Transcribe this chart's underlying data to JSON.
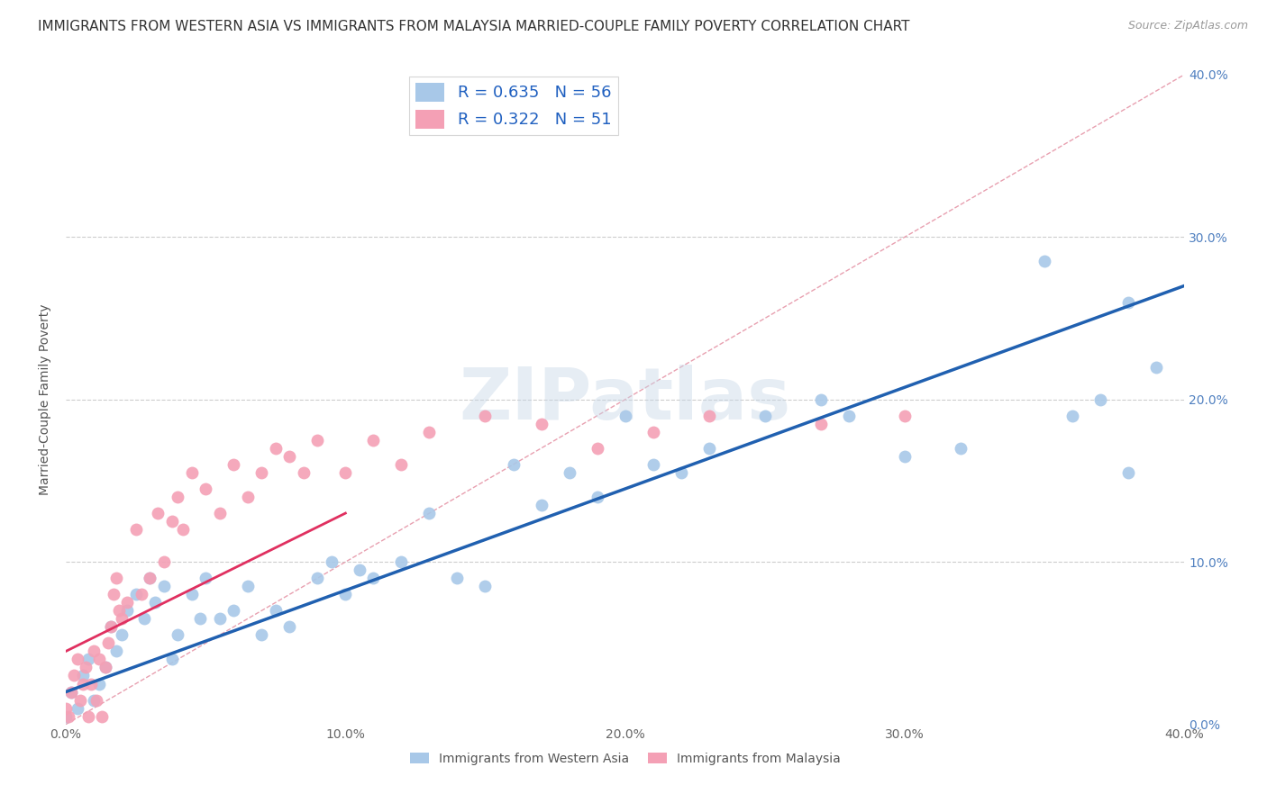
{
  "title": "IMMIGRANTS FROM WESTERN ASIA VS IMMIGRANTS FROM MALAYSIA MARRIED-COUPLE FAMILY POVERTY CORRELATION CHART",
  "source": "Source: ZipAtlas.com",
  "xlabel_bottom": [
    "Immigrants from Western Asia",
    "Immigrants from Malaysia"
  ],
  "ylabel": "Married-Couple Family Poverty",
  "xlim": [
    0.0,
    0.4
  ],
  "ylim": [
    0.0,
    0.4
  ],
  "xtick_labels": [
    "0.0%",
    "10.0%",
    "20.0%",
    "30.0%",
    "40.0%"
  ],
  "xtick_vals": [
    0.0,
    0.1,
    0.2,
    0.3,
    0.4
  ],
  "ytick_labels_right": [
    "0.0%",
    "10.0%",
    "20.0%",
    "30.0%",
    "40.0%"
  ],
  "ytick_vals": [
    0.0,
    0.1,
    0.2,
    0.3,
    0.4
  ],
  "R_blue": 0.635,
  "N_blue": 56,
  "R_pink": 0.322,
  "N_pink": 51,
  "blue_color": "#a8c8e8",
  "pink_color": "#f4a0b5",
  "blue_line_color": "#2060b0",
  "pink_line_color": "#e03060",
  "diagonal_color": "#e8a0b0",
  "watermark": "ZIPatlas",
  "blue_scatter_x": [
    0.0,
    0.002,
    0.004,
    0.006,
    0.008,
    0.01,
    0.012,
    0.014,
    0.016,
    0.018,
    0.02,
    0.022,
    0.025,
    0.028,
    0.03,
    0.032,
    0.035,
    0.038,
    0.04,
    0.045,
    0.048,
    0.05,
    0.055,
    0.06,
    0.065,
    0.07,
    0.075,
    0.08,
    0.09,
    0.095,
    0.1,
    0.105,
    0.11,
    0.12,
    0.13,
    0.14,
    0.15,
    0.16,
    0.17,
    0.18,
    0.19,
    0.2,
    0.21,
    0.22,
    0.23,
    0.25,
    0.27,
    0.28,
    0.3,
    0.32,
    0.35,
    0.36,
    0.37,
    0.38,
    0.38,
    0.39
  ],
  "blue_scatter_y": [
    0.005,
    0.02,
    0.01,
    0.03,
    0.04,
    0.015,
    0.025,
    0.035,
    0.06,
    0.045,
    0.055,
    0.07,
    0.08,
    0.065,
    0.09,
    0.075,
    0.085,
    0.04,
    0.055,
    0.08,
    0.065,
    0.09,
    0.065,
    0.07,
    0.085,
    0.055,
    0.07,
    0.06,
    0.09,
    0.1,
    0.08,
    0.095,
    0.09,
    0.1,
    0.13,
    0.09,
    0.085,
    0.16,
    0.135,
    0.155,
    0.14,
    0.19,
    0.16,
    0.155,
    0.17,
    0.19,
    0.2,
    0.19,
    0.165,
    0.17,
    0.285,
    0.19,
    0.2,
    0.155,
    0.26,
    0.22
  ],
  "pink_scatter_x": [
    0.0,
    0.001,
    0.002,
    0.003,
    0.004,
    0.005,
    0.006,
    0.007,
    0.008,
    0.009,
    0.01,
    0.011,
    0.012,
    0.013,
    0.014,
    0.015,
    0.016,
    0.017,
    0.018,
    0.019,
    0.02,
    0.022,
    0.025,
    0.027,
    0.03,
    0.033,
    0.035,
    0.038,
    0.04,
    0.042,
    0.045,
    0.05,
    0.055,
    0.06,
    0.065,
    0.07,
    0.075,
    0.08,
    0.085,
    0.09,
    0.1,
    0.11,
    0.12,
    0.13,
    0.15,
    0.17,
    0.19,
    0.21,
    0.23,
    0.27,
    0.3
  ],
  "pink_scatter_y": [
    0.01,
    0.005,
    0.02,
    0.03,
    0.04,
    0.015,
    0.025,
    0.035,
    0.005,
    0.025,
    0.045,
    0.015,
    0.04,
    0.005,
    0.035,
    0.05,
    0.06,
    0.08,
    0.09,
    0.07,
    0.065,
    0.075,
    0.12,
    0.08,
    0.09,
    0.13,
    0.1,
    0.125,
    0.14,
    0.12,
    0.155,
    0.145,
    0.13,
    0.16,
    0.14,
    0.155,
    0.17,
    0.165,
    0.155,
    0.175,
    0.155,
    0.175,
    0.16,
    0.18,
    0.19,
    0.185,
    0.17,
    0.18,
    0.19,
    0.185,
    0.19
  ],
  "background_color": "#ffffff",
  "grid_color": "#cccccc",
  "title_fontsize": 11,
  "axis_label_fontsize": 10,
  "legend_fontsize": 13,
  "blue_line_x0": 0.0,
  "blue_line_y0": 0.02,
  "blue_line_x1": 0.4,
  "blue_line_y1": 0.27,
  "pink_line_x0": 0.0,
  "pink_line_y0": 0.045,
  "pink_line_x1": 0.1,
  "pink_line_y1": 0.13
}
